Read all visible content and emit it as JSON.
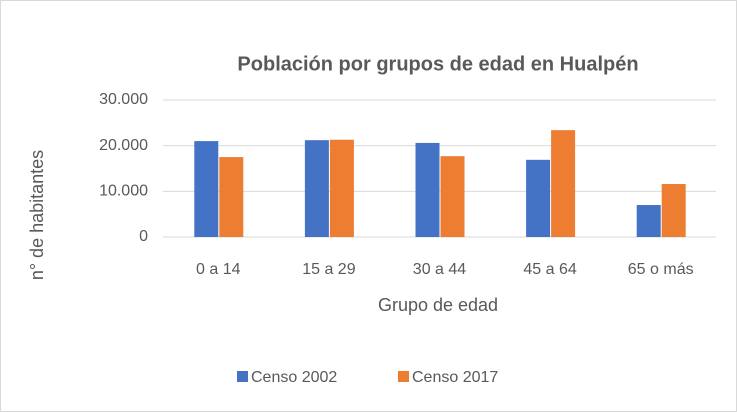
{
  "chart_data": {
    "type": "bar",
    "title": "Población por grupos de edad en Hualpén",
    "x_label": "Grupo de edad",
    "y_label": "n° de habitantes",
    "categories": [
      "0 a 14",
      "15 a 29",
      "30 a 44",
      "45 a 64",
      "65 o más"
    ],
    "series": [
      {
        "name": "Censo 2002",
        "color": "#4472c4",
        "values": [
          21000,
          21200,
          20600,
          16900,
          7000
        ]
      },
      {
        "name": "Censo 2017",
        "color": "#ed7d31",
        "values": [
          17500,
          21300,
          17700,
          23400,
          11600
        ]
      }
    ],
    "ylim": [
      0,
      30000
    ],
    "yticks": [
      0,
      {
        "value": 10000,
        "label": "10.000"
      },
      {
        "value": 20000,
        "label": "20.000"
      },
      {
        "value": 30000,
        "label": "30.000"
      }
    ],
    "grid": true,
    "legend": "bottom"
  }
}
